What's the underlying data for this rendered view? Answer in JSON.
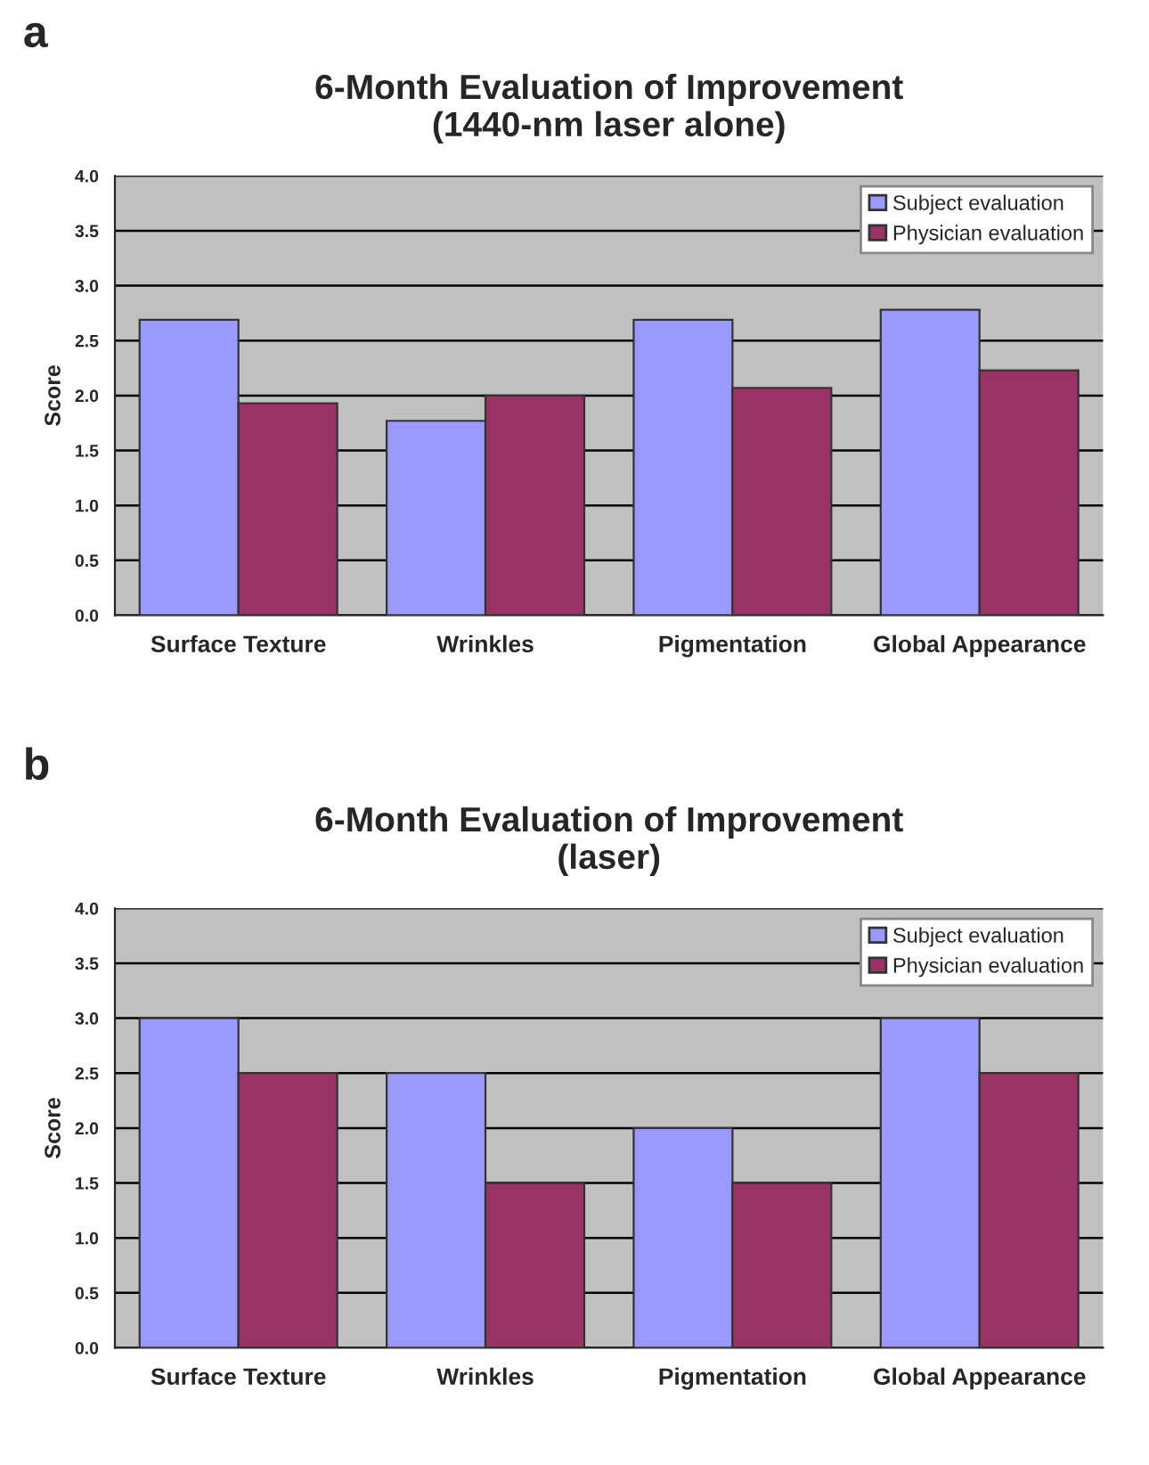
{
  "chart_data": [
    {
      "type": "bar",
      "title": "6-Month Evaluation of Improvement\n(1440-nm laser alone)",
      "ylabel": "Score",
      "annotations": [
        "a"
      ],
      "categories": [
        "Surface Texture",
        "Wrinkles",
        "Pigmentation",
        "Global Appearance"
      ],
      "series": [
        {
          "name": "Subject evaluation",
          "color": "#9999ff",
          "values": [
            2.69,
            1.77,
            2.69,
            2.78
          ]
        },
        {
          "name": "Physician evaluation",
          "color": "#993366",
          "values": [
            1.93,
            2.0,
            2.07,
            2.23
          ]
        }
      ],
      "ylim": [
        0,
        4
      ],
      "yticks": [
        {
          "value": 0,
          "label": "0.0"
        },
        {
          "value": 0.5,
          "label": "0.5"
        },
        {
          "value": 1,
          "label": "1.0"
        },
        {
          "value": 1.5,
          "label": "1.5"
        },
        {
          "value": 2,
          "label": "2.0"
        },
        {
          "value": 2.5,
          "label": "2.5"
        },
        {
          "value": 3,
          "label": "3.0"
        },
        {
          "value": 3.5,
          "label": "3.5"
        },
        {
          "value": 4,
          "label": "4.0"
        }
      ],
      "grid": "y",
      "legend": "top right"
    },
    {
      "type": "bar",
      "title": "6-Month Evaluation of Improvement\n(laser)",
      "ylabel": "Score",
      "annotations": [
        "b"
      ],
      "categories": [
        "Surface Texture",
        "Wrinkles",
        "Pigmentation",
        "Global Appearance"
      ],
      "series": [
        {
          "name": "Subject evaluation",
          "color": "#9999ff",
          "values": [
            3.0,
            2.5,
            2.0,
            3.0
          ]
        },
        {
          "name": "Physician evaluation",
          "color": "#993366",
          "values": [
            2.5,
            1.5,
            1.5,
            2.5
          ]
        }
      ],
      "ylim": [
        0,
        4
      ],
      "yticks": [
        {
          "value": 0,
          "label": "0.0"
        },
        {
          "value": 0.5,
          "label": "0.5"
        },
        {
          "value": 1,
          "label": "1.0"
        },
        {
          "value": 1.5,
          "label": "1.5"
        },
        {
          "value": 2,
          "label": "2.0"
        },
        {
          "value": 2.5,
          "label": "2.5"
        },
        {
          "value": 3,
          "label": "3.0"
        },
        {
          "value": 3.5,
          "label": "3.5"
        },
        {
          "value": 4,
          "label": "4.0"
        }
      ],
      "grid": "y",
      "legend": "top right"
    }
  ]
}
